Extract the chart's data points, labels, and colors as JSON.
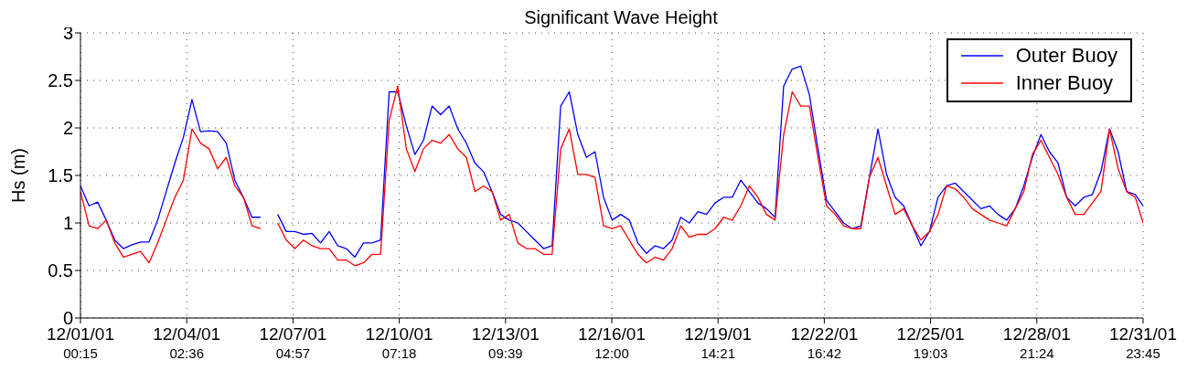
{
  "chart_data": {
    "type": "line",
    "title": "Significant Wave Height",
    "ylabel": "Hs (m)",
    "x": [
      "--12-01T00:15",
      "--12-01T06:15",
      "--12-01T12:15",
      "--12-01T18:15",
      "--12-02T00:15",
      "--12-02T06:15",
      "--12-02T12:15",
      "--12-02T18:15",
      "--12-03T00:15",
      "--12-03T06:15",
      "--12-03T12:15",
      "--12-03T18:15",
      "--12-04T00:15",
      "--12-04T06:15",
      "--12-04T12:15",
      "--12-04T18:15",
      "--12-05T00:15",
      "--12-05T06:15",
      "--12-05T12:15",
      "--12-05T18:15",
      "--12-06T00:15",
      "--12-06T06:15",
      "--12-06T12:15",
      "--12-06T18:15",
      "--12-07T00:15",
      "--12-07T06:15",
      "--12-07T12:15",
      "--12-07T18:15",
      "--12-08T00:15",
      "--12-08T06:15",
      "--12-08T12:15",
      "--12-08T18:15",
      "--12-09T00:15",
      "--12-09T06:15",
      "--12-09T12:15",
      "--12-09T18:15",
      "--12-10T00:15",
      "--12-10T06:15",
      "--12-10T12:15",
      "--12-10T18:15",
      "--12-11T00:15",
      "--12-11T06:15",
      "--12-11T12:15",
      "--12-11T18:15",
      "--12-12T00:15",
      "--12-12T06:15",
      "--12-12T12:15",
      "--12-12T18:15",
      "--12-13T00:15",
      "--12-13T06:15",
      "--12-13T12:15",
      "--12-13T18:15",
      "--12-14T00:15",
      "--12-14T06:15",
      "--12-14T12:15",
      "--12-14T18:15",
      "--12-15T00:15",
      "--12-15T06:15",
      "--12-15T12:15",
      "--12-15T18:15",
      "--12-16T00:15",
      "--12-16T06:15",
      "--12-16T12:15",
      "--12-16T18:15",
      "--12-17T00:15",
      "--12-17T06:15",
      "--12-17T12:15",
      "--12-17T18:15",
      "--12-18T00:15",
      "--12-18T06:15",
      "--12-18T12:15",
      "--12-18T18:15",
      "--12-19T00:15",
      "--12-19T06:15",
      "--12-19T12:15",
      "--12-19T18:15",
      "--12-20T00:15",
      "--12-20T06:15",
      "--12-20T12:15",
      "--12-20T18:15",
      "--12-21T00:15",
      "--12-21T06:15",
      "--12-21T12:15",
      "--12-21T18:15",
      "--12-22T00:15",
      "--12-22T06:15",
      "--12-22T12:15",
      "--12-22T18:15",
      "--12-23T00:15",
      "--12-23T06:15",
      "--12-23T12:15",
      "--12-23T18:15",
      "--12-24T00:15",
      "--12-24T06:15",
      "--12-24T12:15",
      "--12-24T18:15",
      "--12-25T00:15",
      "--12-25T06:15",
      "--12-25T12:15",
      "--12-25T18:15",
      "--12-26T00:15",
      "--12-26T06:15",
      "--12-26T12:15",
      "--12-26T18:15",
      "--12-27T00:15",
      "--12-27T06:15",
      "--12-27T12:15",
      "--12-27T18:15",
      "--12-28T00:15",
      "--12-28T06:15",
      "--12-28T12:15",
      "--12-28T18:15",
      "--12-29T00:15",
      "--12-29T06:15",
      "--12-29T12:15",
      "--12-29T18:15",
      "--12-30T00:15",
      "--12-30T06:15",
      "--12-30T12:15",
      "--12-30T18:15",
      "--12-31T00:15",
      "--12-31T06:15",
      "--12-31T12:15",
      "--12-31T18:15",
      "--12-31T23:45"
    ],
    "series": [
      {
        "name": "Outer Buoy",
        "color": "#0000ff",
        "values": [
          1.39,
          1.18,
          1.22,
          1.03,
          0.82,
          0.73,
          0.77,
          0.8,
          0.8,
          1.03,
          1.33,
          1.63,
          1.9,
          2.3,
          1.96,
          1.97,
          1.96,
          1.84,
          1.45,
          1.27,
          1.06,
          1.06,
          null,
          1.09,
          0.91,
          0.91,
          0.88,
          0.89,
          0.79,
          0.91,
          0.76,
          0.73,
          0.64,
          0.79,
          0.79,
          0.82,
          2.38,
          2.38,
          2.02,
          1.72,
          1.87,
          2.23,
          2.14,
          2.23,
          1.99,
          1.84,
          1.63,
          1.54,
          1.33,
          1.09,
          1.03,
          1.0,
          0.91,
          0.82,
          0.73,
          0.76,
          2.23,
          2.38,
          1.93,
          1.69,
          1.75,
          1.27,
          1.03,
          1.09,
          1.03,
          0.79,
          0.68,
          0.76,
          0.73,
          0.82,
          1.06,
          1.0,
          1.12,
          1.09,
          1.21,
          1.27,
          1.27,
          1.45,
          1.33,
          1.21,
          1.15,
          1.06,
          2.44,
          2.62,
          2.65,
          2.35,
          1.78,
          1.24,
          1.12,
          1.0,
          0.94,
          0.97,
          1.48,
          1.99,
          1.51,
          1.27,
          1.18,
          0.97,
          0.76,
          0.91,
          1.27,
          1.39,
          1.42,
          1.33,
          1.24,
          1.15,
          1.18,
          1.09,
          1.03,
          1.15,
          1.39,
          1.69,
          1.93,
          1.75,
          1.63,
          1.27,
          1.18,
          1.27,
          1.3,
          1.54,
          1.99,
          1.75,
          1.33,
          1.3,
          1.18
        ]
      },
      {
        "name": "Inner Buoy",
        "color": "#ff0000",
        "values": [
          1.33,
          0.97,
          0.94,
          1.03,
          0.79,
          0.64,
          0.67,
          0.7,
          0.58,
          0.79,
          1.03,
          1.27,
          1.45,
          1.99,
          1.84,
          1.78,
          1.57,
          1.69,
          1.39,
          1.27,
          0.97,
          0.94,
          null,
          1.0,
          0.82,
          0.73,
          0.82,
          0.76,
          0.73,
          0.73,
          0.61,
          0.61,
          0.55,
          0.58,
          0.67,
          0.67,
          2.08,
          2.44,
          1.78,
          1.54,
          1.78,
          1.87,
          1.84,
          1.93,
          1.78,
          1.69,
          1.33,
          1.39,
          1.33,
          1.03,
          1.09,
          0.79,
          0.73,
          0.73,
          0.67,
          0.67,
          1.78,
          1.99,
          1.51,
          1.51,
          1.48,
          0.97,
          0.94,
          0.97,
          0.82,
          0.67,
          0.58,
          0.64,
          0.61,
          0.73,
          0.97,
          0.85,
          0.88,
          0.88,
          0.94,
          1.06,
          1.03,
          1.18,
          1.39,
          1.27,
          1.09,
          1.03,
          1.93,
          2.38,
          2.23,
          2.23,
          1.69,
          1.18,
          1.09,
          0.97,
          0.94,
          0.94,
          1.48,
          1.69,
          1.39,
          1.09,
          1.15,
          0.97,
          0.82,
          0.91,
          1.09,
          1.39,
          1.36,
          1.27,
          1.15,
          1.09,
          1.03,
          1.0,
          0.97,
          1.15,
          1.33,
          1.72,
          1.87,
          1.69,
          1.51,
          1.27,
          1.09,
          1.09,
          1.21,
          1.33,
          1.99,
          1.57,
          1.33,
          1.27,
          1.0
        ]
      }
    ],
    "xlim": [
      "--12-01T00:15",
      "--12-31T23:45"
    ],
    "xticks": [
      {
        "value": "--12-01T00:15",
        "label": "12/01/01\n00:15"
      },
      {
        "value": "--12-04T02:36",
        "label": "12/04/01\n02:36"
      },
      {
        "value": "--12-07T04:57",
        "label": "12/07/01\n04:57"
      },
      {
        "value": "--12-10T07:18",
        "label": "12/10/01\n07:18"
      },
      {
        "value": "--12-13T09:39",
        "label": "12/13/01\n09:39"
      },
      {
        "value": "--12-16T12:00",
        "label": "12/16/01\n12:00"
      },
      {
        "value": "--12-19T14:21",
        "label": "12/19/01\n14:21"
      },
      {
        "value": "--12-22T16:42",
        "label": "12/22/01\n16:42"
      },
      {
        "value": "--12-25T19:03",
        "label": "12/25/01\n19:03"
      },
      {
        "value": "--12-28T21:24",
        "label": "12/28/01\n21:24"
      },
      {
        "value": "--12-31T23:45",
        "label": "12/31/01\n23:45"
      }
    ],
    "ylim": [
      0,
      3
    ],
    "yticks": [
      0,
      0.5,
      1,
      1.5,
      2,
      2.5,
      3
    ],
    "grid": true,
    "legend": "top right",
    "marker": "none",
    "line_style": "solid"
  }
}
